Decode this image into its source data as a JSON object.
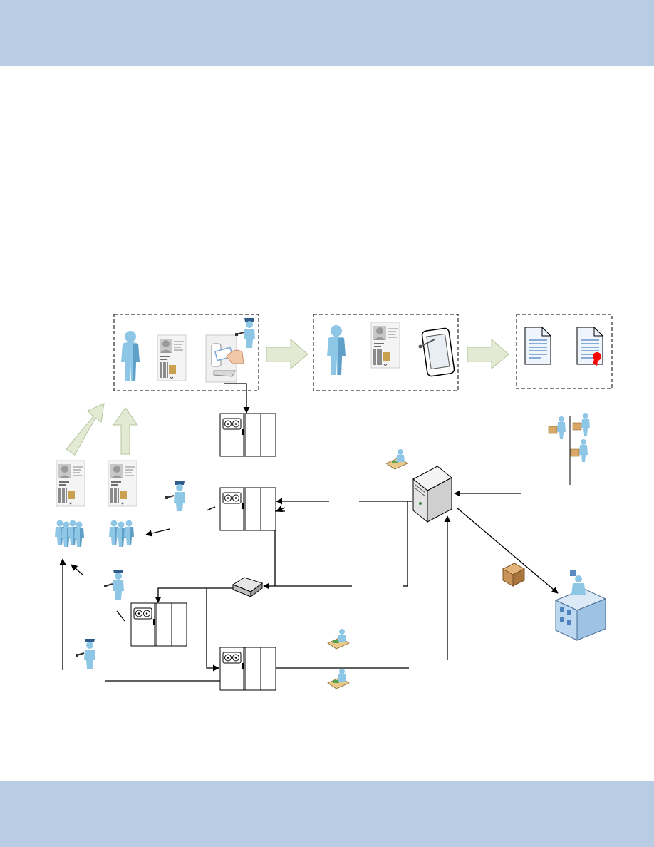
{
  "colors": {
    "band": "#b8cce4",
    "line": "#000000",
    "flow_arrow_fill": "#e2ead3",
    "flow_arrow_stroke": "#b4c49a",
    "person_body": "#8ec6e6",
    "person_shade": "#5f9fc8",
    "guard_cap": "#2e5b8a",
    "rack_fill": "#ffffff",
    "doc_fill": "#eef5fc",
    "doc_lines": "#4f81bd",
    "seal": "#ff0000",
    "building": "#bcd8f0",
    "package": "#c8945a",
    "server_fill": "#f4f4f4"
  },
  "icons": {
    "person": "person-icon",
    "badge": "id-badge-icon",
    "card_reader": "card-reader-icon",
    "guard": "security-guard-icon",
    "tablet": "tablet-icon",
    "document": "document-icon",
    "certificate": "certificate-icon",
    "rack": "tape-library-rack-icon",
    "switch": "network-switch-icon",
    "server": "server-icon",
    "operator": "operator-desk-icon",
    "building": "offsite-building-icon",
    "package": "package-icon",
    "worker": "warehouse-worker-icon",
    "group": "people-group-icon"
  }
}
